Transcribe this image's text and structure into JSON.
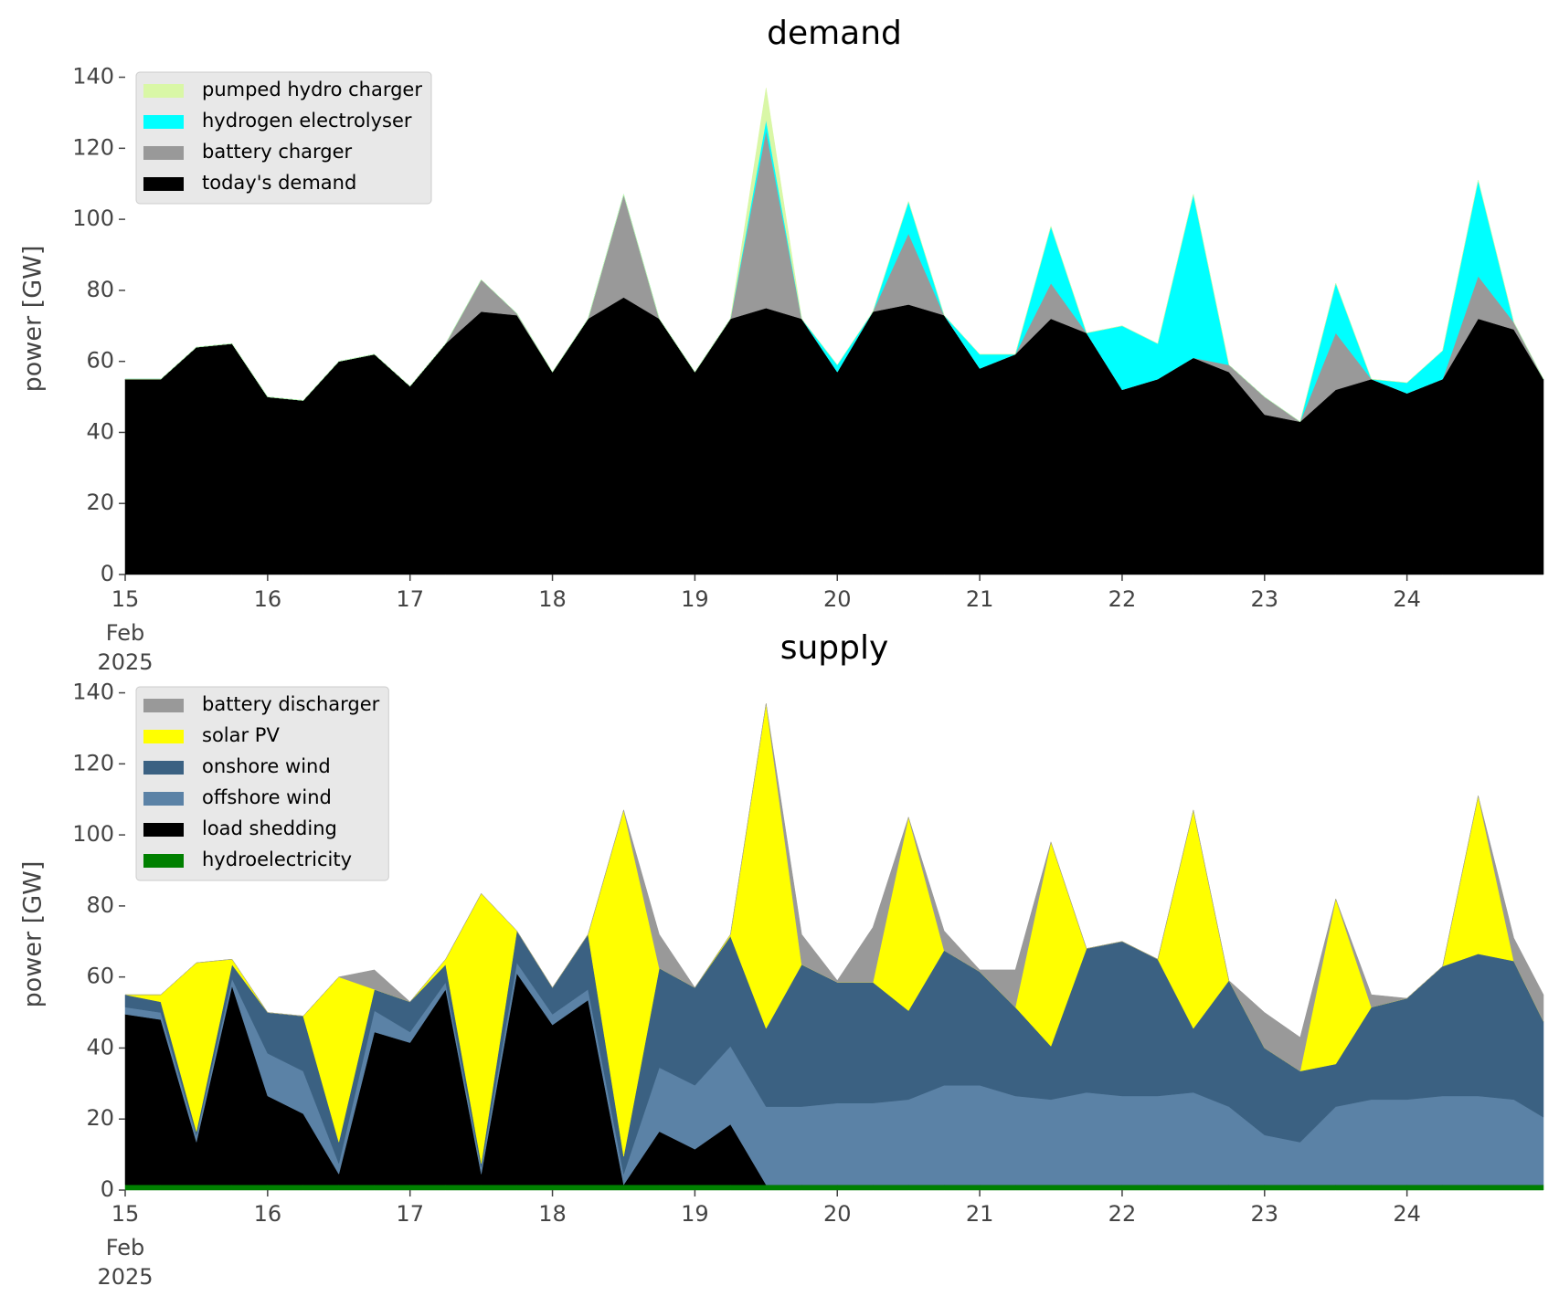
{
  "chart_data": [
    {
      "type": "stacked_area",
      "title": "demand",
      "y_label": "power [GW]",
      "x": [
        "2025-02-15T00:00",
        "2025-02-15T06:00",
        "2025-02-15T12:00",
        "2025-02-15T18:00",
        "2025-02-16T00:00",
        "2025-02-16T06:00",
        "2025-02-16T12:00",
        "2025-02-16T18:00",
        "2025-02-17T00:00",
        "2025-02-17T06:00",
        "2025-02-17T12:00",
        "2025-02-17T18:00",
        "2025-02-18T00:00",
        "2025-02-18T06:00",
        "2025-02-18T12:00",
        "2025-02-18T18:00",
        "2025-02-19T00:00",
        "2025-02-19T06:00",
        "2025-02-19T12:00",
        "2025-02-19T18:00",
        "2025-02-20T00:00",
        "2025-02-20T06:00",
        "2025-02-20T12:00",
        "2025-02-20T18:00",
        "2025-02-21T00:00",
        "2025-02-21T06:00",
        "2025-02-21T12:00",
        "2025-02-21T18:00",
        "2025-02-22T00:00",
        "2025-02-22T06:00",
        "2025-02-22T12:00",
        "2025-02-22T18:00",
        "2025-02-23T00:00",
        "2025-02-23T06:00",
        "2025-02-23T12:00",
        "2025-02-23T18:00",
        "2025-02-24T00:00",
        "2025-02-24T06:00",
        "2025-02-24T12:00",
        "2025-02-24T18:00",
        "2025-02-24T23:00"
      ],
      "series": [
        {
          "name": "today's demand",
          "color": "#000000",
          "values": [
            55,
            55,
            64,
            65,
            50,
            49,
            60,
            62,
            53,
            65,
            74,
            73,
            57,
            72,
            78,
            72,
            57,
            72,
            75,
            72,
            57,
            74,
            76,
            73,
            58,
            62,
            72,
            68,
            52,
            55,
            61,
            57,
            45,
            43,
            52,
            55,
            51,
            55,
            72,
            69,
            55
          ]
        },
        {
          "name": "battery charger",
          "color": "#999999",
          "values": [
            0,
            0,
            0,
            0,
            0,
            0,
            0,
            0,
            0,
            0,
            9,
            0.5,
            0,
            0,
            29,
            0,
            0,
            0,
            50,
            0,
            0,
            0,
            20,
            0,
            0,
            0,
            10,
            0,
            0,
            0,
            0,
            2,
            5,
            0,
            16,
            0,
            0,
            0,
            12,
            2,
            0
          ]
        },
        {
          "name": "hydrogen electrolyser",
          "color": "#00ffff",
          "values": [
            0,
            0,
            0,
            0,
            0,
            0,
            0,
            0,
            0,
            0,
            0,
            0,
            0,
            0,
            0,
            0,
            0,
            0,
            3,
            0,
            2,
            0,
            9,
            0,
            4,
            0,
            16,
            0,
            18,
            10,
            46,
            0,
            0,
            0,
            14,
            0,
            3,
            8,
            27,
            0,
            0
          ]
        },
        {
          "name": "pumped hydro charger",
          "color": "#d9f7a6",
          "values": [
            0,
            0,
            0,
            0,
            0,
            0,
            0,
            0,
            0,
            0,
            0,
            0,
            0,
            0,
            0,
            0,
            0,
            0,
            9,
            0,
            0,
            0,
            0,
            0,
            0,
            0,
            0,
            0,
            0,
            0,
            0,
            0,
            0,
            0,
            0,
            0,
            0,
            0,
            0,
            0,
            0
          ]
        }
      ],
      "xlim": [
        "2025-02-15T00:00",
        "2025-02-24T23:00"
      ],
      "xticks": [
        {
          "value": "2025-02-15T00:00",
          "label": "15"
        },
        {
          "value": "2025-02-16T00:00",
          "label": "16"
        },
        {
          "value": "2025-02-17T00:00",
          "label": "17"
        },
        {
          "value": "2025-02-18T00:00",
          "label": "18"
        },
        {
          "value": "2025-02-19T00:00",
          "label": "19"
        },
        {
          "value": "2025-02-20T00:00",
          "label": "20"
        },
        {
          "value": "2025-02-21T00:00",
          "label": "21"
        },
        {
          "value": "2025-02-22T00:00",
          "label": "22"
        },
        {
          "value": "2025-02-23T00:00",
          "label": "23"
        },
        {
          "value": "2025-02-24T00:00",
          "label": "24"
        }
      ],
      "x_month_label": "Feb",
      "x_year_label": "2025",
      "ylim": [
        0,
        144
      ],
      "yticks": [
        0,
        20,
        40,
        60,
        80,
        100,
        120,
        140
      ],
      "grid": false,
      "legend": "upper left"
    },
    {
      "type": "stacked_area",
      "title": "supply",
      "y_label": "power [GW]",
      "x": [
        "2025-02-15T00:00",
        "2025-02-15T06:00",
        "2025-02-15T12:00",
        "2025-02-15T18:00",
        "2025-02-16T00:00",
        "2025-02-16T06:00",
        "2025-02-16T12:00",
        "2025-02-16T18:00",
        "2025-02-17T00:00",
        "2025-02-17T06:00",
        "2025-02-17T12:00",
        "2025-02-17T18:00",
        "2025-02-18T00:00",
        "2025-02-18T06:00",
        "2025-02-18T12:00",
        "2025-02-18T18:00",
        "2025-02-19T00:00",
        "2025-02-19T06:00",
        "2025-02-19T12:00",
        "2025-02-19T18:00",
        "2025-02-20T00:00",
        "2025-02-20T06:00",
        "2025-02-20T12:00",
        "2025-02-20T18:00",
        "2025-02-21T00:00",
        "2025-02-21T06:00",
        "2025-02-21T12:00",
        "2025-02-21T18:00",
        "2025-02-22T00:00",
        "2025-02-22T06:00",
        "2025-02-22T12:00",
        "2025-02-22T18:00",
        "2025-02-23T00:00",
        "2025-02-23T06:00",
        "2025-02-23T12:00",
        "2025-02-23T18:00",
        "2025-02-24T00:00",
        "2025-02-24T06:00",
        "2025-02-24T12:00",
        "2025-02-24T18:00",
        "2025-02-24T23:00"
      ],
      "series": [
        {
          "name": "hydroelectricity",
          "color": "#008000",
          "values": [
            1.5,
            1.5,
            1.5,
            1.5,
            1.5,
            1.5,
            1.5,
            1.5,
            1.5,
            1.5,
            1.5,
            1.5,
            1.5,
            1.5,
            1.5,
            1.5,
            1.5,
            1.5,
            1.5,
            1.5,
            1.5,
            1.5,
            1.5,
            1.5,
            1.5,
            1.5,
            1.5,
            1.5,
            1.5,
            1.5,
            1.5,
            1.5,
            1.5,
            1.5,
            1.5,
            1.5,
            1.5,
            1.5,
            1.5,
            1.5,
            1.5
          ]
        },
        {
          "name": "load shedding",
          "color": "#000000",
          "values": [
            48,
            46.5,
            12,
            56,
            25,
            20,
            3,
            43,
            40,
            55,
            3,
            59.5,
            45,
            52,
            0,
            15,
            10,
            17,
            0,
            0,
            0,
            0,
            0,
            0,
            0,
            0,
            0,
            0,
            0,
            0,
            0,
            0,
            0,
            0,
            0,
            0,
            0,
            0,
            0,
            0,
            0
          ]
        },
        {
          "name": "offshore wind",
          "color": "#5b82a6",
          "values": [
            2,
            2,
            2,
            2,
            12,
            12,
            3,
            6,
            3,
            2,
            2,
            3,
            3,
            3,
            3,
            18,
            18,
            22,
            22,
            22,
            23,
            23,
            24,
            28,
            28,
            25,
            24,
            26,
            25,
            25,
            26,
            22,
            14,
            12,
            22,
            24,
            24,
            25,
            25,
            24,
            19
          ]
        },
        {
          "name": "onshore wind",
          "color": "#3b6182",
          "values": [
            3.5,
            3,
            1,
            4,
            11.5,
            15.5,
            6,
            6,
            8.5,
            5,
            1,
            9,
            7.5,
            15.5,
            5,
            28,
            27.5,
            31,
            22,
            40,
            34,
            34,
            25,
            38,
            32,
            25,
            15,
            40.5,
            43.5,
            38.5,
            18,
            35.5,
            24.5,
            20,
            12,
            26,
            28.5,
            36.5,
            40,
            39,
            27
          ]
        },
        {
          "name": "solar PV",
          "color": "#ffff00",
          "values": [
            0,
            2,
            47.5,
            1.5,
            0,
            0,
            46.5,
            0,
            0,
            1.5,
            76,
            0,
            0,
            0,
            97.5,
            0,
            0,
            0.5,
            91.5,
            0,
            0,
            0,
            54.5,
            0,
            0,
            0,
            57.5,
            0,
            0,
            0,
            61.5,
            0,
            0,
            0,
            46.5,
            0,
            0,
            0,
            44.5,
            0,
            0
          ]
        },
        {
          "name": "battery discharger",
          "color": "#999999",
          "values": [
            0,
            0,
            0,
            0,
            0,
            0,
            0,
            5.5,
            0,
            0,
            0,
            0,
            0,
            0,
            0,
            9.5,
            0,
            0,
            0,
            8.5,
            0.5,
            15.5,
            0,
            5.5,
            0.5,
            10.5,
            0,
            0,
            0,
            0,
            0,
            0,
            10,
            9.5,
            0,
            3.5,
            0,
            0,
            0,
            6.5,
            7.5
          ]
        }
      ],
      "xlim": [
        "2025-02-15T00:00",
        "2025-02-24T23:00"
      ],
      "xticks": [
        {
          "value": "2025-02-15T00:00",
          "label": "15"
        },
        {
          "value": "2025-02-16T00:00",
          "label": "16"
        },
        {
          "value": "2025-02-17T00:00",
          "label": "17"
        },
        {
          "value": "2025-02-18T00:00",
          "label": "18"
        },
        {
          "value": "2025-02-19T00:00",
          "label": "19"
        },
        {
          "value": "2025-02-20T00:00",
          "label": "20"
        },
        {
          "value": "2025-02-21T00:00",
          "label": "21"
        },
        {
          "value": "2025-02-22T00:00",
          "label": "22"
        },
        {
          "value": "2025-02-23T00:00",
          "label": "23"
        },
        {
          "value": "2025-02-24T00:00",
          "label": "24"
        }
      ],
      "x_month_label": "Feb",
      "x_year_label": "2025",
      "ylim": [
        0,
        144
      ],
      "yticks": [
        0,
        20,
        40,
        60,
        80,
        100,
        120,
        140
      ],
      "grid": false,
      "legend": "upper left"
    }
  ]
}
